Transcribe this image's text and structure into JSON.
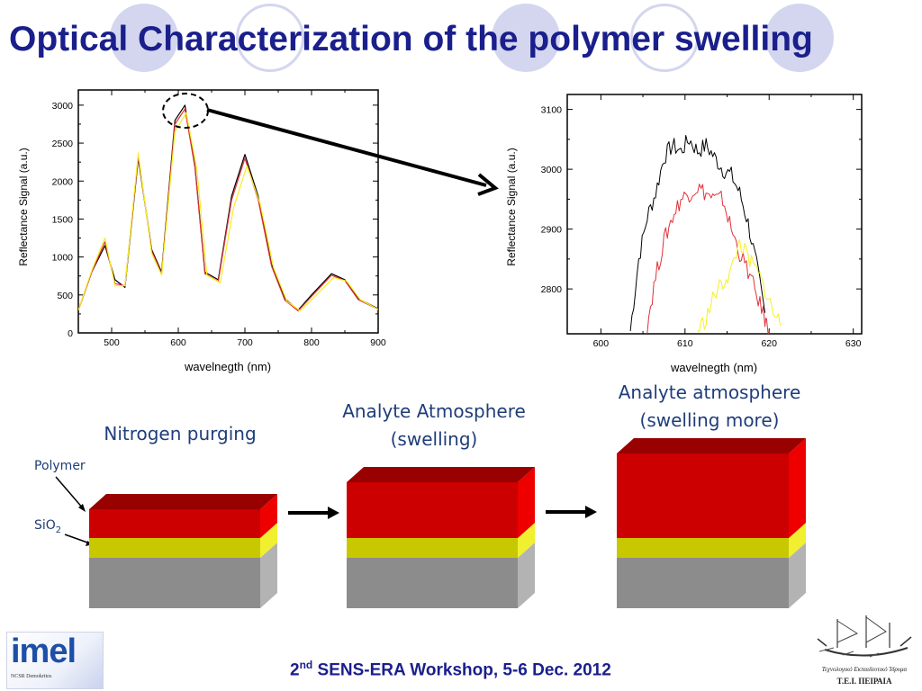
{
  "title": "Optical Characterization of the polymer swelling",
  "colors": {
    "title": "#1a1f8c",
    "deco_circle": "#d4d6ef",
    "red_layer": "#d00000",
    "yellow_layer": "#c8c800",
    "gray_layer": "#8c8c8c"
  },
  "chart_data": [
    {
      "type": "line",
      "ylabel": "Reflectance Signal (a.u.)",
      "xlabel": "wavelnegth (nm)",
      "xlim": [
        450,
        900
      ],
      "ylim": [
        0,
        3200
      ],
      "x_ticks": [
        "500",
        "600",
        "700",
        "800",
        "900"
      ],
      "y_ticks": [
        "0",
        "500",
        "1000",
        "1500",
        "2000",
        "2500",
        "3000"
      ],
      "series": [
        {
          "color": "#000000",
          "x": [
            450,
            470,
            490,
            505,
            520,
            540,
            560,
            575,
            595,
            610,
            625,
            640,
            660,
            680,
            700,
            720,
            740,
            760,
            780,
            800,
            830,
            850,
            870,
            900
          ],
          "y": [
            300,
            800,
            1150,
            700,
            600,
            2300,
            1100,
            800,
            2800,
            3000,
            2200,
            800,
            700,
            1800,
            2350,
            1800,
            900,
            450,
            300,
            500,
            780,
            700,
            450,
            320
          ]
        },
        {
          "color": "#e0303a",
          "x": [
            450,
            470,
            490,
            505,
            520,
            540,
            560,
            575,
            595,
            610,
            625,
            640,
            660,
            680,
            700,
            720,
            740,
            760,
            780,
            800,
            830,
            850,
            870,
            900
          ],
          "y": [
            300,
            800,
            1200,
            650,
            620,
            2330,
            1080,
            780,
            2750,
            2950,
            2180,
            780,
            680,
            1750,
            2300,
            1750,
            880,
            430,
            290,
            480,
            760,
            690,
            440,
            310
          ]
        },
        {
          "color": "#f5f020",
          "x": [
            450,
            470,
            490,
            505,
            520,
            540,
            560,
            575,
            595,
            612,
            628,
            643,
            663,
            683,
            703,
            723,
            743,
            763,
            783,
            803,
            833,
            853,
            873,
            900
          ],
          "y": [
            300,
            820,
            1250,
            620,
            620,
            2370,
            1050,
            760,
            2650,
            2900,
            2150,
            760,
            660,
            1650,
            2200,
            1700,
            860,
            420,
            290,
            460,
            730,
            680,
            440,
            310
          ]
        }
      ],
      "annotation": "dashed circle around the main peak near 610 nm"
    },
    {
      "type": "line",
      "ylabel": "Reflectance Signal (a.u.)",
      "xlabel": "wavelnegth (nm)",
      "xlim": [
        596,
        631
      ],
      "ylim": [
        2725,
        3125
      ],
      "x_ticks": [
        "600",
        "610",
        "620",
        "630"
      ],
      "y_ticks": [
        "2800",
        "2900",
        "3000",
        "3100"
      ],
      "series": [
        {
          "color": "#000000",
          "x": [
            603.5,
            604.5,
            605.5,
            606.5,
            607.5,
            608.5,
            609.5,
            610.5,
            611.5,
            612.5,
            613.5,
            614.5,
            615.5,
            616.5,
            617.5,
            618.5,
            619.5
          ],
          "y": [
            2730,
            2850,
            2920,
            2960,
            3020,
            3040,
            3030,
            3050,
            3030,
            3040,
            3020,
            3000,
            2990,
            2960,
            2910,
            2840,
            2760
          ]
        },
        {
          "color": "#e0303a",
          "x": [
            605.5,
            606.5,
            607.5,
            608.5,
            609.5,
            610.5,
            611.5,
            612.5,
            613.5,
            614.5,
            615.5,
            616.5,
            617.5,
            618.5,
            619.5,
            620
          ],
          "y": [
            2740,
            2820,
            2880,
            2920,
            2950,
            2960,
            2970,
            2960,
            2950,
            2950,
            2900,
            2860,
            2830,
            2790,
            2750,
            2730
          ]
        },
        {
          "color": "#f5f020",
          "x": [
            611.5,
            612.5,
            613.5,
            614.5,
            615.5,
            616.5,
            617.5,
            618.5,
            619.5,
            620.5,
            621.5
          ],
          "y": [
            2730,
            2750,
            2790,
            2810,
            2830,
            2880,
            2850,
            2830,
            2800,
            2760,
            2740
          ]
        }
      ]
    }
  ],
  "labels": {
    "nitrogen": "Nitrogen purging",
    "analyte1_line1": "Analyte Atmosphere",
    "analyte1_line2": "(swelling)",
    "analyte2_line1": "Analyte atmosphere",
    "analyte2_line2": "(swelling more)",
    "polymer": "Polymer",
    "sio2_base": "SiO",
    "sio2_sub": "2"
  },
  "footer": {
    "ordinal": "2",
    "suffix": "nd",
    "text": " SENS-ERA Workshop, 5-6 Dec. 2012"
  },
  "logos": {
    "left": "imel",
    "left_sub": "NCSR Demokritos",
    "right_line1": "Τεχνολογικό Εκπαιδευτικό Ίδρυμα",
    "right_line2": "Τ.Ε.Ι. ΠΕΙΡΑΙΑ"
  }
}
